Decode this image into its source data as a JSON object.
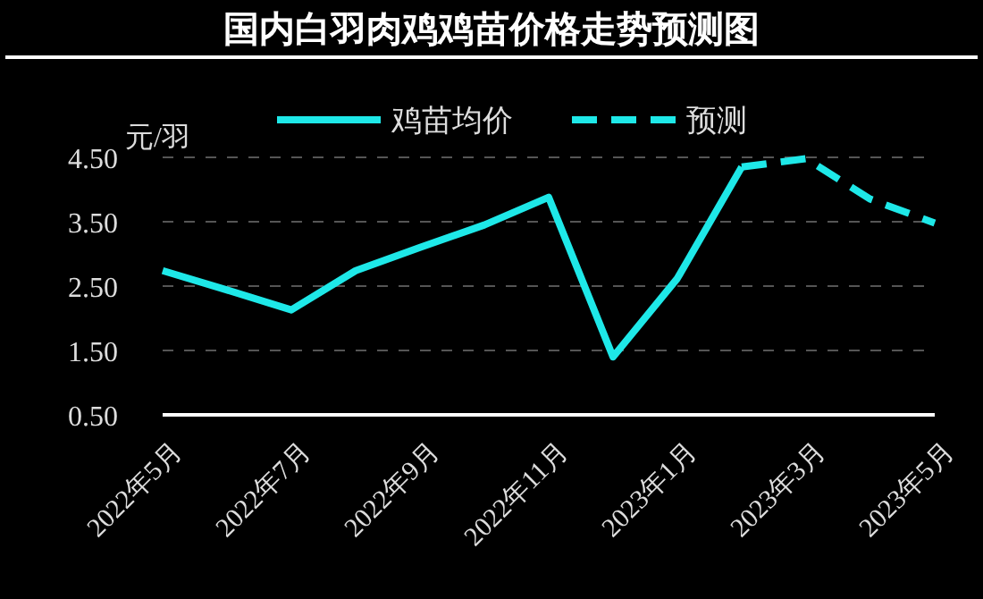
{
  "chart_data": {
    "type": "line",
    "title": "国内白羽肉鸡鸡苗价格走势预测图",
    "ylabel": "元/羽",
    "categories": [
      "2022年5月",
      null,
      "2022年7月",
      null,
      "2022年9月",
      null,
      "2022年11月",
      null,
      "2023年1月",
      null,
      "2023年3月",
      null,
      "2023年5月"
    ],
    "series": [
      {
        "name": "鸡苗均价",
        "color": "#1ee8e8",
        "line_style": "solid",
        "values": [
          2.74,
          2.44,
          2.13,
          2.74,
          3.1,
          3.45,
          3.88,
          1.4,
          2.62,
          4.35,
          null,
          null,
          null
        ]
      },
      {
        "name": "预测",
        "color": "#1ee8e8",
        "line_style": "dashed",
        "values": [
          null,
          null,
          null,
          null,
          null,
          null,
          null,
          null,
          null,
          4.35,
          4.48,
          3.85,
          3.48
        ]
      }
    ],
    "ylim": [
      0.5,
      4.5
    ],
    "yticks": [
      {
        "value": 0.5,
        "label": "0.50"
      },
      {
        "value": 1.5,
        "label": "1.50"
      },
      {
        "value": 2.5,
        "label": "2.50"
      },
      {
        "value": 3.5,
        "label": "3.50"
      },
      {
        "value": 4.5,
        "label": "4.50"
      }
    ],
    "grid": "y",
    "legend": "top",
    "marker": "none"
  }
}
